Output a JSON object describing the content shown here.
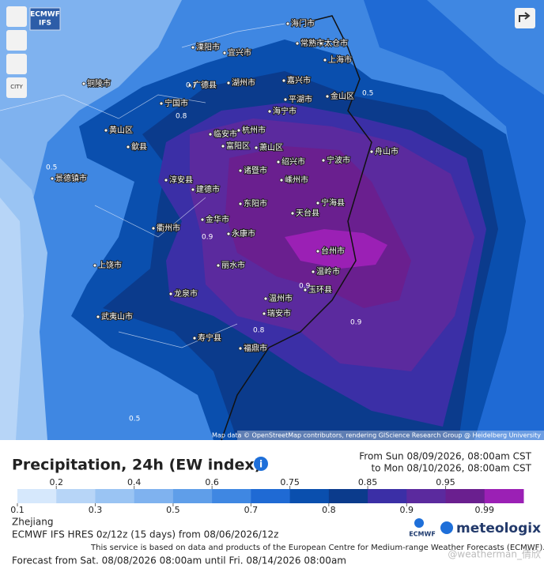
{
  "map": {
    "badge": [
      "ECMWF",
      "IFS"
    ],
    "city_button": "CITY",
    "attribution": "Map data © OpenStreetMap contributors, rendering GIScience Research Group @ Heidelberg University",
    "cities": [
      "海门市",
      "常熟市",
      "太仓市",
      "上海市",
      "溧阳市",
      "宜兴市",
      "湖州市",
      "嘉兴市",
      "平湖市",
      "金山区",
      "海宁市",
      "杭州市",
      "富阳区",
      "萧山区",
      "绍兴市",
      "宁波市",
      "舟山市",
      "嵊州市",
      "诸暨市",
      "宁海县",
      "天台县",
      "东阳市",
      "金华市",
      "永康市",
      "台州市",
      "温岭市",
      "丽水市",
      "玉环县",
      "温州市",
      "瑞安市",
      "龙泉市",
      "寿宁县",
      "福鼎市",
      "衢州市",
      "建德市",
      "淳安县",
      "黄山区",
      "歙县",
      "宁国市",
      "广德县",
      "临安市",
      "上饶市",
      "武夷山市",
      "铜陵市",
      "景德镇市"
    ],
    "contour_labels": [
      "0.9",
      "0.9",
      "0.9",
      "0.8",
      "0.8",
      "0.7",
      "0.5",
      "0.5",
      "0.5"
    ]
  },
  "legend": {
    "title": "Precipitation, 24h (EW index)",
    "valid_from": "From Sun 08/09/2026, 08:00am CST",
    "valid_to": "to Mon 08/10/2026, 08:00am CST",
    "levels": [
      0.1,
      0.2,
      0.3,
      0.4,
      0.5,
      0.6,
      0.7,
      0.75,
      0.8,
      0.85,
      0.9,
      0.95,
      0.99
    ],
    "colors": [
      "#d6e8fc",
      "#b7d5f7",
      "#9ac4f3",
      "#7fb2ef",
      "#5f9ee9",
      "#3f87e2",
      "#1f6ad4",
      "#0a4fae",
      "#0b3b8c",
      "#3b2fa6",
      "#5b2a9e",
      "#6a1f8f",
      "#9b20b5"
    ]
  },
  "footer": {
    "region": "Zhejiang",
    "model": "ECMWF IFS HRES 0z/12z (15 days) from 08/06/2026/12z",
    "notice": "This service is based on data and products of the European Centre for Medium-range Weather Forecasts (ECMWF).",
    "forecast": "Forecast from Sat. 08/08/2026 08:00am until Fri. 08/14/2026 08:00am",
    "logo_ecmwf": "ECMWF",
    "logo_meteologix": "meteologix",
    "watermark": "@weatherman_倩欣"
  }
}
